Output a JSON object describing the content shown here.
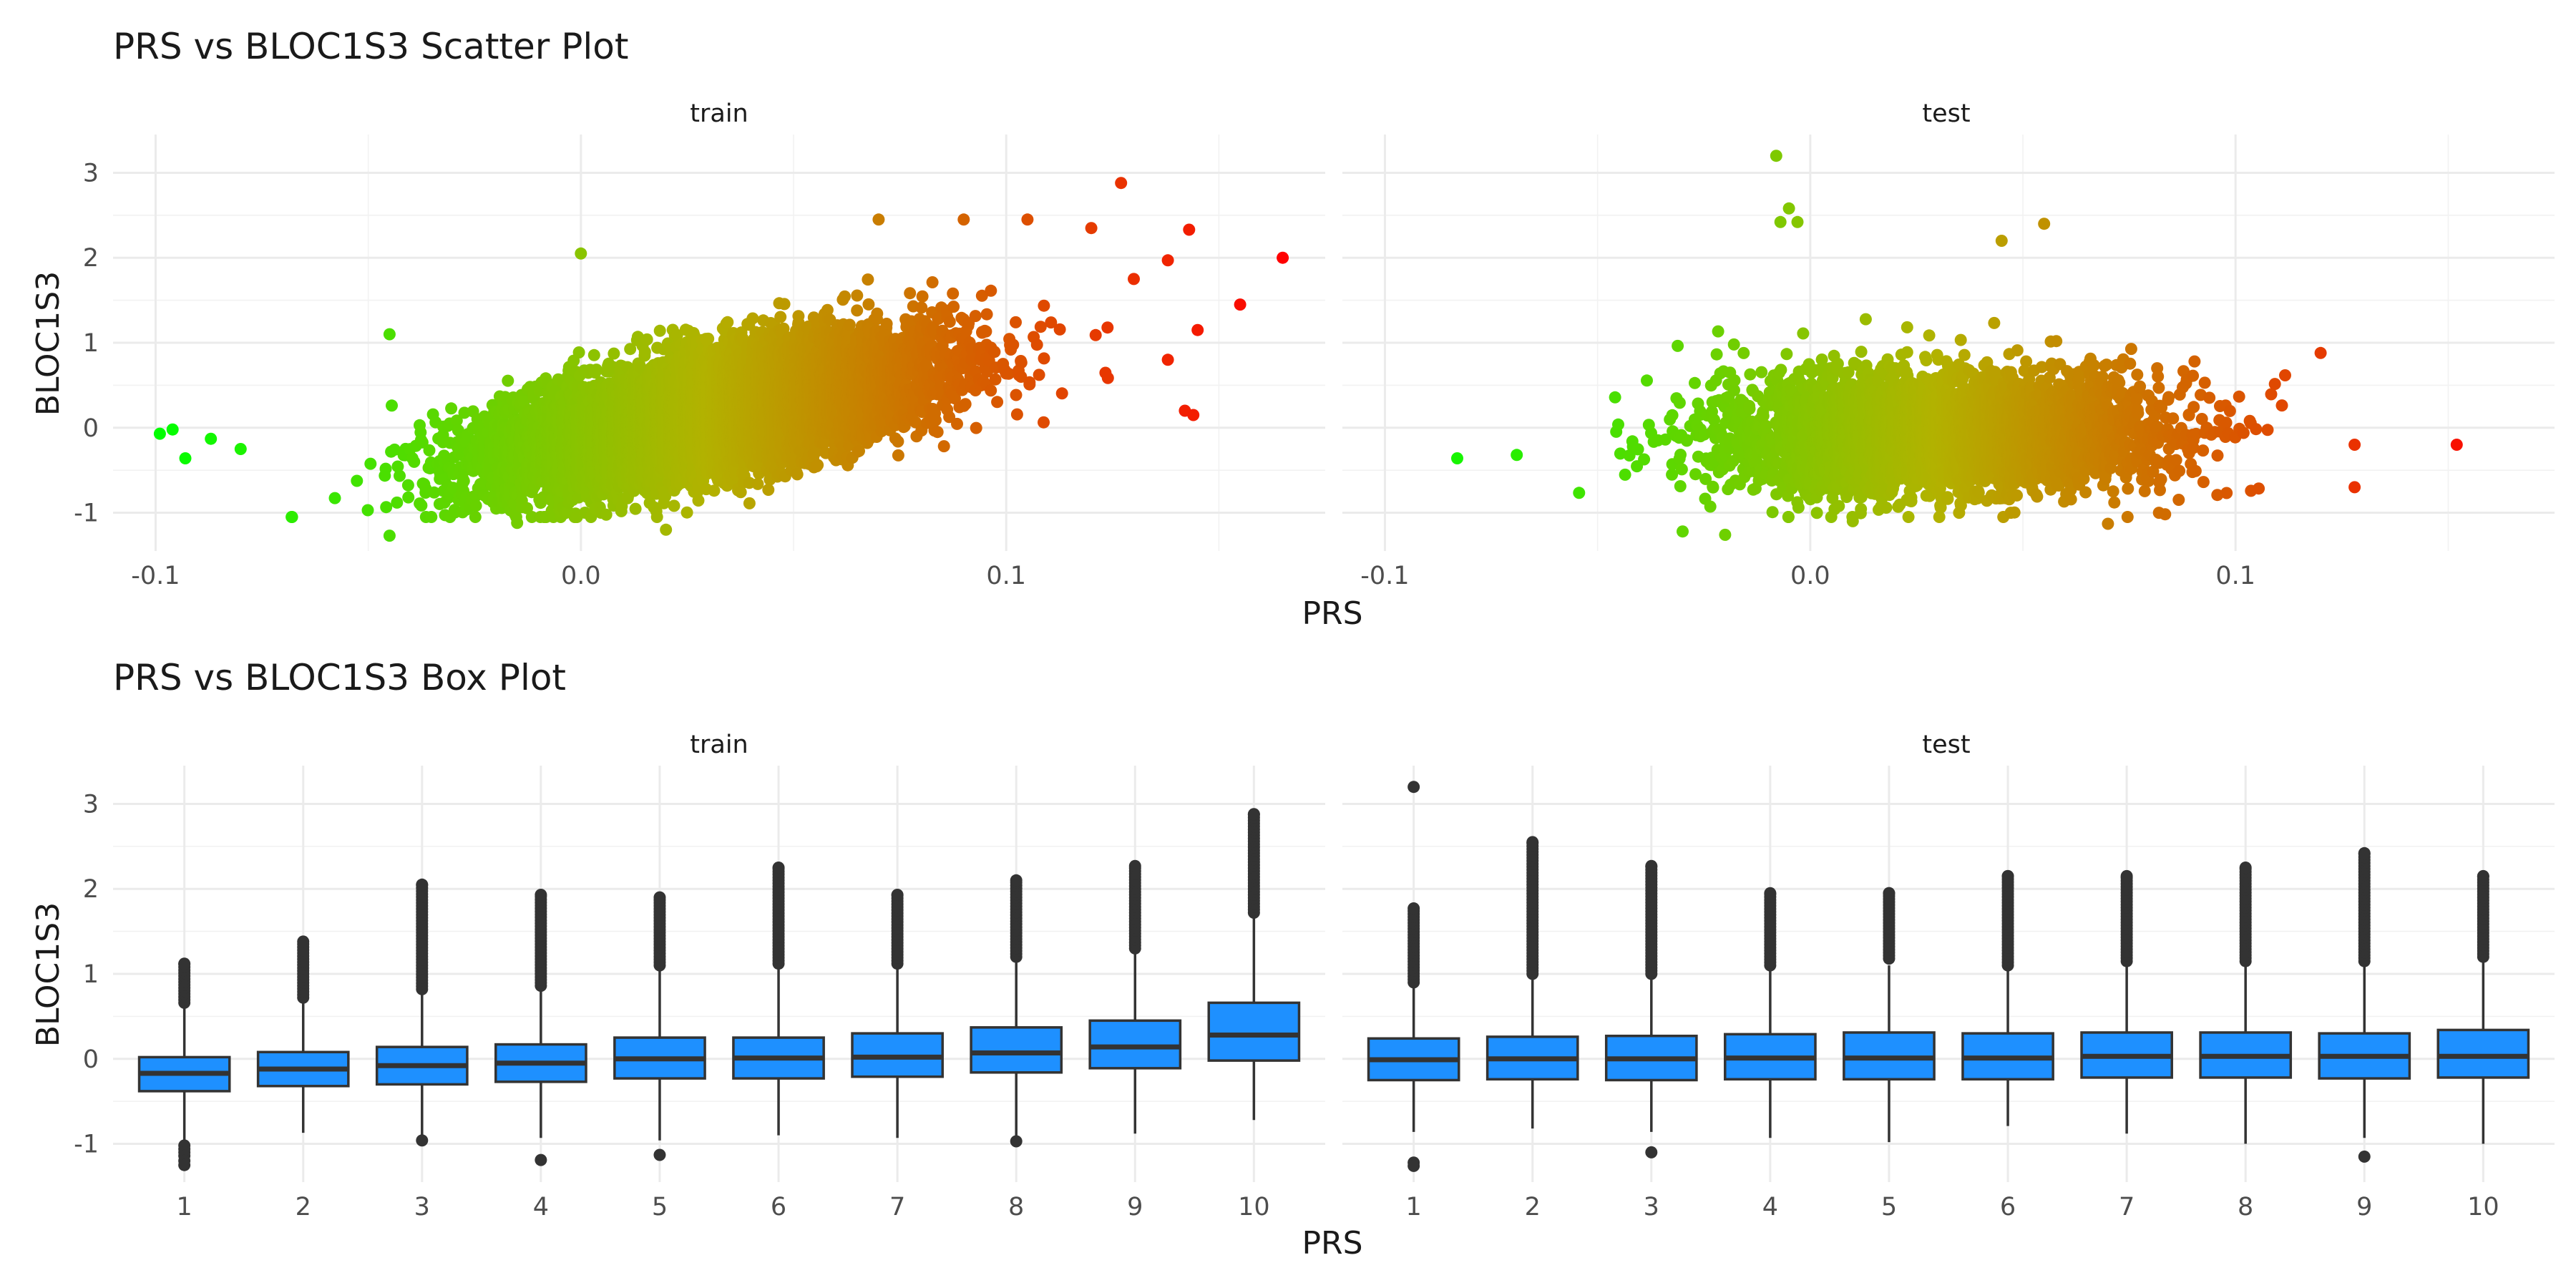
{
  "chart_data": [
    {
      "type": "scatter",
      "title": "PRS vs BLOC1S3 Scatter Plot",
      "xlabel": "PRS",
      "ylabel": "BLOC1S3",
      "facets": [
        "train",
        "test"
      ],
      "xlim": [
        -0.11,
        0.175
      ],
      "ylim": [
        -1.45,
        3.45
      ],
      "x_ticks": [
        -0.1,
        0.0,
        0.1
      ],
      "x_tick_labels": [
        "-0.1",
        "0.0",
        "0.1"
      ],
      "y_ticks": [
        -1,
        0,
        1,
        2,
        3
      ],
      "y_tick_labels": [
        "-1",
        "0",
        "1",
        "2",
        "3"
      ],
      "grid": true,
      "color_scale": {
        "low": "#00ff00",
        "mid": "#b2b200",
        "high": "#ff0000",
        "mapped_to": "PRS"
      },
      "panels": {
        "train": {
          "n_points": 10000,
          "x_mean": 0.03,
          "x_sd": 0.025,
          "slope": 10.0,
          "noise_sd": 0.34,
          "x_range": [
            -0.1,
            0.165
          ],
          "y_range": [
            -1.27,
            2.88
          ],
          "notable_points": [
            {
              "x": -0.099,
              "y": -0.07
            },
            {
              "x": -0.096,
              "y": -0.02
            },
            {
              "x": -0.093,
              "y": -0.36
            },
            {
              "x": -0.087,
              "y": -0.13
            },
            {
              "x": -0.08,
              "y": -0.25
            },
            {
              "x": -0.045,
              "y": -1.27
            },
            {
              "x": -0.045,
              "y": 1.1
            },
            {
              "x": -0.015,
              "y": -1.12
            },
            {
              "x": 0.02,
              "y": -1.2
            },
            {
              "x": 0.127,
              "y": 2.88
            },
            {
              "x": 0.143,
              "y": 2.33
            },
            {
              "x": 0.165,
              "y": 2.0
            },
            {
              "x": 0.155,
              "y": 1.45
            },
            {
              "x": 0.145,
              "y": 1.15
            },
            {
              "x": 0.138,
              "y": 0.8
            },
            {
              "x": 0.142,
              "y": 0.2
            },
            {
              "x": 0.144,
              "y": 0.15
            },
            {
              "x": 0.138,
              "y": 1.97
            },
            {
              "x": 0.13,
              "y": 1.75
            },
            {
              "x": 0.12,
              "y": 2.35
            },
            {
              "x": 0.105,
              "y": 2.45
            },
            {
              "x": 0.07,
              "y": 2.45
            },
            {
              "x": 0.09,
              "y": 2.45
            },
            {
              "x": 0.0,
              "y": 2.05
            }
          ]
        },
        "test": {
          "n_points": 4500,
          "x_mean": 0.03,
          "x_sd": 0.025,
          "slope": 0.0,
          "noise_sd": 0.34,
          "x_range": [
            -0.083,
            0.152
          ],
          "y_range": [
            -1.26,
            3.2
          ],
          "notable_points": [
            {
              "x": -0.083,
              "y": -0.36
            },
            {
              "x": -0.069,
              "y": -0.32
            },
            {
              "x": -0.008,
              "y": 3.2
            },
            {
              "x": -0.005,
              "y": 2.58
            },
            {
              "x": -0.007,
              "y": 2.42
            },
            {
              "x": -0.003,
              "y": 2.42
            },
            {
              "x": 0.152,
              "y": -0.2
            },
            {
              "x": 0.128,
              "y": -0.7
            },
            {
              "x": 0.128,
              "y": -0.2
            },
            {
              "x": 0.12,
              "y": 0.88
            },
            {
              "x": -0.03,
              "y": -1.22
            },
            {
              "x": -0.02,
              "y": -1.26
            },
            {
              "x": 0.055,
              "y": 2.4
            },
            {
              "x": 0.045,
              "y": 2.2
            },
            {
              "x": 0.07,
              "y": -1.13
            },
            {
              "x": 0.082,
              "y": -1.0
            },
            {
              "x": 0.035,
              "y": -1.0
            },
            {
              "x": 0.01,
              "y": -1.1
            }
          ]
        }
      }
    },
    {
      "type": "box",
      "title": "PRS vs BLOC1S3 Box Plot",
      "xlabel": "PRS",
      "ylabel": "BLOC1S3",
      "facets": [
        "train",
        "test"
      ],
      "categories": [
        "1",
        "2",
        "3",
        "4",
        "5",
        "6",
        "7",
        "8",
        "9",
        "10"
      ],
      "ylim": [
        -1.45,
        3.45
      ],
      "y_ticks": [
        -1,
        0,
        1,
        2,
        3
      ],
      "y_tick_labels": [
        "-1",
        "0",
        "1",
        "2",
        "3"
      ],
      "grid": true,
      "box_fill": "#1e90ff",
      "box_stroke": "#333333",
      "panels": {
        "train": [
          {
            "q1": -0.38,
            "median": -0.17,
            "q3": 0.02,
            "wlo": -0.97,
            "whi": 0.62,
            "out_lo": [
              -1.02,
              -1.06,
              -1.1,
              -1.14,
              -1.2,
              -1.25
            ],
            "out_hi_start": 0.66,
            "out_hi_end": 1.12
          },
          {
            "q1": -0.32,
            "median": -0.12,
            "q3": 0.08,
            "wlo": -0.87,
            "whi": 0.68,
            "out_lo": [],
            "out_hi_start": 0.72,
            "out_hi_end": 1.38
          },
          {
            "q1": -0.3,
            "median": -0.08,
            "q3": 0.14,
            "wlo": -0.92,
            "whi": 0.78,
            "out_lo": [
              -0.96
            ],
            "out_hi_start": 0.82,
            "out_hi_end": 2.05
          },
          {
            "q1": -0.27,
            "median": -0.05,
            "q3": 0.17,
            "wlo": -0.93,
            "whi": 0.82,
            "out_lo": [
              -1.19
            ],
            "out_hi_start": 0.86,
            "out_hi_end": 1.93
          },
          {
            "q1": -0.23,
            "median": 0.0,
            "q3": 0.25,
            "wlo": -0.96,
            "whi": 1.05,
            "out_lo": [
              -1.13
            ],
            "out_hi_start": 1.1,
            "out_hi_end": 1.9
          },
          {
            "q1": -0.23,
            "median": 0.01,
            "q3": 0.25,
            "wlo": -0.9,
            "whi": 1.05,
            "out_lo": [],
            "out_hi_start": 1.12,
            "out_hi_end": 2.25
          },
          {
            "q1": -0.21,
            "median": 0.02,
            "q3": 0.3,
            "wlo": -0.93,
            "whi": 1.05,
            "out_lo": [],
            "out_hi_start": 1.12,
            "out_hi_end": 1.93
          },
          {
            "q1": -0.16,
            "median": 0.07,
            "q3": 0.37,
            "wlo": -0.93,
            "whi": 1.13,
            "out_lo": [
              -0.97
            ],
            "out_hi_start": 1.2,
            "out_hi_end": 2.1
          },
          {
            "q1": -0.11,
            "median": 0.14,
            "q3": 0.45,
            "wlo": -0.88,
            "whi": 1.25,
            "out_lo": [],
            "out_hi_start": 1.3,
            "out_hi_end": 2.27
          },
          {
            "q1": -0.02,
            "median": 0.28,
            "q3": 0.66,
            "wlo": -0.72,
            "whi": 1.68,
            "out_lo": [],
            "out_hi_start": 1.72,
            "out_hi_end": 2.88
          }
        ],
        "test": [
          {
            "q1": -0.25,
            "median": -0.01,
            "q3": 0.24,
            "wlo": -0.86,
            "whi": 0.85,
            "out_lo": [
              -1.22,
              -1.26
            ],
            "out_hi_start": 0.9,
            "out_hi_end": 1.77,
            "out_far": [
              3.2
            ]
          },
          {
            "q1": -0.24,
            "median": 0.0,
            "q3": 0.26,
            "wlo": -0.82,
            "whi": 0.95,
            "out_lo": [],
            "out_hi_start": 1.0,
            "out_hi_end": 2.55
          },
          {
            "q1": -0.25,
            "median": 0.0,
            "q3": 0.27,
            "wlo": -0.86,
            "whi": 0.95,
            "out_lo": [
              -1.1
            ],
            "out_hi_start": 1.0,
            "out_hi_end": 2.27
          },
          {
            "q1": -0.24,
            "median": 0.01,
            "q3": 0.29,
            "wlo": -0.93,
            "whi": 1.05,
            "out_lo": [],
            "out_hi_start": 1.1,
            "out_hi_end": 1.95
          },
          {
            "q1": -0.24,
            "median": 0.01,
            "q3": 0.31,
            "wlo": -0.98,
            "whi": 1.1,
            "out_lo": [],
            "out_hi_start": 1.18,
            "out_hi_end": 1.95
          },
          {
            "q1": -0.24,
            "median": 0.01,
            "q3": 0.3,
            "wlo": -0.79,
            "whi": 1.05,
            "out_lo": [],
            "out_hi_start": 1.1,
            "out_hi_end": 2.15
          },
          {
            "q1": -0.22,
            "median": 0.03,
            "q3": 0.31,
            "wlo": -0.88,
            "whi": 1.1,
            "out_lo": [],
            "out_hi_start": 1.15,
            "out_hi_end": 2.15
          },
          {
            "q1": -0.22,
            "median": 0.03,
            "q3": 0.31,
            "wlo": -1.0,
            "whi": 1.1,
            "out_lo": [],
            "out_hi_start": 1.15,
            "out_hi_end": 2.25
          },
          {
            "q1": -0.23,
            "median": 0.03,
            "q3": 0.3,
            "wlo": -0.93,
            "whi": 1.1,
            "out_lo": [
              -1.15
            ],
            "out_hi_start": 1.15,
            "out_hi_end": 2.42
          },
          {
            "q1": -0.22,
            "median": 0.03,
            "q3": 0.34,
            "wlo": -1.0,
            "whi": 1.15,
            "out_lo": [],
            "out_hi_start": 1.2,
            "out_hi_end": 2.15
          }
        ]
      }
    }
  ]
}
